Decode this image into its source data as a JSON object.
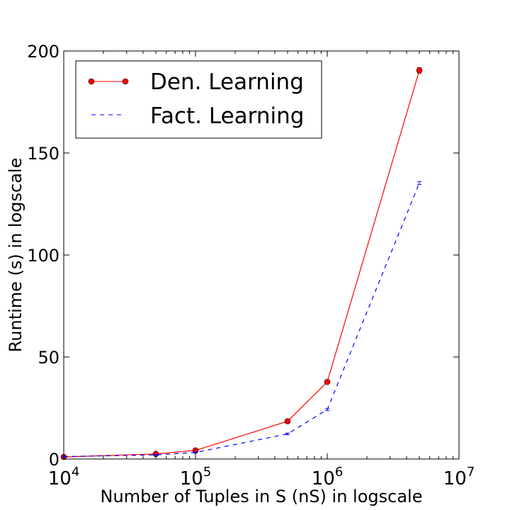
{
  "chart_data": {
    "type": "line",
    "xlabel": "Number of Tuples in S (nS) in logscale",
    "ylabel": "Runtime (s) in logscale",
    "x_scale": "log",
    "xlim": [
      10000,
      10000000
    ],
    "ylim": [
      0,
      200
    ],
    "x_ticks": [
      {
        "value": 10000,
        "base": "10",
        "exp": "4"
      },
      {
        "value": 100000,
        "base": "10",
        "exp": "5"
      },
      {
        "value": 1000000,
        "base": "10",
        "exp": "6"
      },
      {
        "value": 10000000,
        "base": "10",
        "exp": "7"
      }
    ],
    "y_ticks": [
      0,
      50,
      100,
      150,
      200
    ],
    "y_tick_labels": [
      "0",
      "50",
      "100",
      "150",
      "200"
    ],
    "legend_position": "top-left",
    "grid": false,
    "series": [
      {
        "name": "Den. Learning",
        "color": "#ff0000",
        "marker_color": "#ff0000",
        "line_style": "solid",
        "marker": "circle",
        "x": [
          10000,
          50000,
          100000,
          500000,
          1000000,
          5000000
        ],
        "y": [
          1.0,
          2.5,
          4.2,
          18.5,
          37.8,
          190.5
        ],
        "error": [
          0.4,
          0.4,
          0.5,
          0.6,
          0.8,
          1.4
        ]
      },
      {
        "name": "Fact. Learning",
        "color": "#0000ff",
        "line_style": "dashed",
        "marker": "none",
        "x": [
          10000,
          50000,
          100000,
          500000,
          1000000,
          5000000
        ],
        "y": [
          1.2,
          2.0,
          3.2,
          12.3,
          24.2,
          135.3
        ],
        "error": [
          0.3,
          0.3,
          0.3,
          0.4,
          0.5,
          0.7
        ]
      }
    ]
  }
}
